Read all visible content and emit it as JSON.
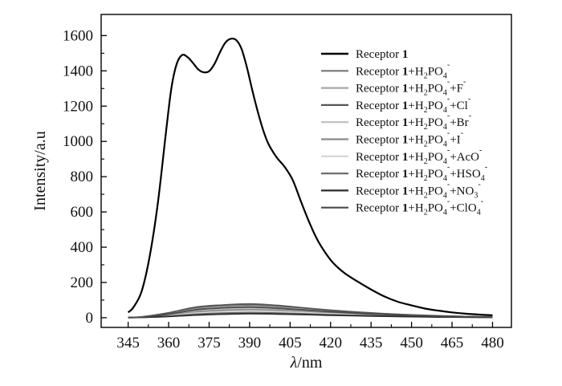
{
  "chart_data": {
    "type": "line",
    "xlabel_symbol": "λ",
    "xlabel_unit": "/nm",
    "ylabel": "Intensity/a.u",
    "xlim": [
      335,
      487
    ],
    "ylim": [
      -55,
      1720
    ],
    "x_ticks": [
      "345",
      "360",
      "375",
      "390",
      "405",
      "420",
      "435",
      "450",
      "465",
      "480"
    ],
    "y_ticks": [
      "0",
      "200",
      "400",
      "600",
      "800",
      "1000",
      "1200",
      "1400",
      "1600"
    ],
    "grid": false,
    "legend_position": "top-right",
    "series": [
      {
        "name": "Receptor 1",
        "legend": [
          {
            "t": "Receptor "
          },
          {
            "t": "1",
            "bold": true
          }
        ],
        "color": "#000000",
        "width": 2.2,
        "x": [
          345,
          347,
          350,
          353,
          356,
          359,
          361,
          363,
          365,
          367,
          369,
          371,
          373,
          375,
          377,
          379,
          381,
          383,
          385,
          387,
          389,
          391,
          393,
          395,
          397,
          400,
          403,
          406,
          409,
          412,
          415,
          418,
          421,
          425,
          430,
          435,
          440,
          445,
          450,
          455,
          460,
          465,
          470,
          475,
          480
        ],
        "y": [
          30,
          60,
          150,
          350,
          650,
          1050,
          1300,
          1440,
          1490,
          1478,
          1445,
          1408,
          1392,
          1398,
          1440,
          1505,
          1560,
          1582,
          1575,
          1525,
          1420,
          1290,
          1170,
          1065,
          985,
          910,
          855,
          780,
          660,
          545,
          445,
          370,
          310,
          255,
          205,
          160,
          120,
          90,
          70,
          52,
          40,
          30,
          23,
          18,
          14
        ]
      },
      {
        "name": "Receptor 1+H2PO4-",
        "legend": [
          {
            "t": "Receptor "
          },
          {
            "t": "1",
            "bold": true
          },
          {
            "t": "+H"
          },
          {
            "t": "2",
            "sub": true
          },
          {
            "t": "PO"
          },
          {
            "t": "4",
            "sub": true
          },
          {
            "t": "-",
            "sup": true
          }
        ],
        "color": "#777777",
        "width": 1.8,
        "x": [
          345,
          350,
          360,
          370,
          380,
          390,
          400,
          410,
          420,
          430,
          440,
          450,
          460,
          470,
          480
        ],
        "y": [
          2,
          4,
          25,
          55,
          68,
          72,
          64,
          52,
          40,
          30,
          22,
          15,
          10,
          7,
          5
        ]
      },
      {
        "name": "Receptor 1+H2PO4-+F-",
        "legend": [
          {
            "t": "Receptor "
          },
          {
            "t": "1",
            "bold": true
          },
          {
            "t": "+H"
          },
          {
            "t": "2",
            "sub": true
          },
          {
            "t": "PO"
          },
          {
            "t": "4",
            "sub": true
          },
          {
            "t": "-",
            "sup": true
          },
          {
            "t": "+F"
          },
          {
            "t": "-",
            "sup": true
          }
        ],
        "color": "#a6a6a6",
        "width": 1.8,
        "x": [
          345,
          350,
          360,
          370,
          380,
          390,
          400,
          410,
          420,
          430,
          440,
          450,
          460,
          470,
          480
        ],
        "y": [
          2,
          4,
          22,
          48,
          60,
          64,
          58,
          47,
          36,
          27,
          20,
          14,
          9,
          6,
          4
        ]
      },
      {
        "name": "Receptor 1+H2PO4-+Cl-",
        "legend": [
          {
            "t": "Receptor "
          },
          {
            "t": "1",
            "bold": true
          },
          {
            "t": "+H"
          },
          {
            "t": "2",
            "sub": true
          },
          {
            "t": "PO"
          },
          {
            "t": "4",
            "sub": true
          },
          {
            "t": "-",
            "sup": true
          },
          {
            "t": "+Cl"
          },
          {
            "t": "-",
            "sup": true
          }
        ],
        "color": "#555555",
        "width": 1.8,
        "x": [
          345,
          350,
          360,
          370,
          380,
          390,
          400,
          410,
          420,
          430,
          440,
          450,
          460,
          470,
          480
        ],
        "y": [
          2,
          5,
          28,
          60,
          72,
          78,
          70,
          56,
          43,
          32,
          23,
          16,
          11,
          7,
          5
        ]
      },
      {
        "name": "Receptor 1+H2PO4-+Br-",
        "legend": [
          {
            "t": "Receptor "
          },
          {
            "t": "1",
            "bold": true
          },
          {
            "t": "+H"
          },
          {
            "t": "2",
            "sub": true
          },
          {
            "t": "PO"
          },
          {
            "t": "4",
            "sub": true
          },
          {
            "t": "-",
            "sup": true
          },
          {
            "t": "+Br"
          },
          {
            "t": "-",
            "sup": true
          }
        ],
        "color": "#bdbdbd",
        "width": 1.8,
        "x": [
          345,
          350,
          360,
          370,
          380,
          390,
          400,
          410,
          420,
          430,
          440,
          450,
          460,
          470,
          480
        ],
        "y": [
          2,
          3,
          18,
          40,
          50,
          55,
          50,
          41,
          31,
          23,
          17,
          12,
          8,
          5,
          4
        ]
      },
      {
        "name": "Receptor 1+H2PO4-+I-",
        "legend": [
          {
            "t": "Receptor "
          },
          {
            "t": "1",
            "bold": true
          },
          {
            "t": "+H"
          },
          {
            "t": "2",
            "sub": true
          },
          {
            "t": "PO"
          },
          {
            "t": "4",
            "sub": true
          },
          {
            "t": "-",
            "sup": true
          },
          {
            "t": "+I"
          },
          {
            "t": "-",
            "sup": true
          }
        ],
        "color": "#8a8a8a",
        "width": 1.8,
        "x": [
          345,
          350,
          360,
          370,
          380,
          390,
          400,
          410,
          420,
          430,
          440,
          450,
          460,
          470,
          480
        ],
        "y": [
          2,
          3,
          15,
          33,
          42,
          46,
          42,
          34,
          26,
          20,
          14,
          10,
          7,
          5,
          3
        ]
      },
      {
        "name": "Receptor 1+H2PO4-+AcO-",
        "legend": [
          {
            "t": "Receptor "
          },
          {
            "t": "1",
            "bold": true
          },
          {
            "t": "+H"
          },
          {
            "t": "2",
            "sub": true
          },
          {
            "t": "PO"
          },
          {
            "t": "4",
            "sub": true
          },
          {
            "t": "-",
            "sup": true
          },
          {
            "t": "+AcO"
          },
          {
            "t": "-",
            "sup": true
          }
        ],
        "color": "#d4d4d4",
        "width": 1.8,
        "x": [
          345,
          350,
          360,
          370,
          380,
          390,
          400,
          410,
          420,
          430,
          440,
          450,
          460,
          470,
          480
        ],
        "y": [
          1,
          3,
          12,
          26,
          34,
          38,
          35,
          29,
          22,
          17,
          12,
          9,
          6,
          4,
          3
        ]
      },
      {
        "name": "Receptor 1+H2PO4-+HSO4-",
        "legend": [
          {
            "t": "Receptor "
          },
          {
            "t": "1",
            "bold": true
          },
          {
            "t": "+H"
          },
          {
            "t": "2",
            "sub": true
          },
          {
            "t": "PO"
          },
          {
            "t": "4",
            "sub": true
          },
          {
            "t": "-",
            "sup": true
          },
          {
            "t": "+HSO"
          },
          {
            "t": "4",
            "sub": true
          },
          {
            "t": "-",
            "sup": true
          }
        ],
        "color": "#6e6e6e",
        "width": 1.8,
        "x": [
          345,
          350,
          360,
          370,
          380,
          390,
          400,
          410,
          420,
          430,
          440,
          450,
          460,
          470,
          480
        ],
        "y": [
          1,
          2,
          9,
          20,
          26,
          29,
          27,
          22,
          17,
          13,
          10,
          7,
          5,
          3,
          2
        ]
      },
      {
        "name": "Receptor 1+H2PO4-+NO3-",
        "legend": [
          {
            "t": "Receptor "
          },
          {
            "t": "1",
            "bold": true
          },
          {
            "t": "+H"
          },
          {
            "t": "2",
            "sub": true
          },
          {
            "t": "PO"
          },
          {
            "t": "4",
            "sub": true
          },
          {
            "t": "-",
            "sup": true
          },
          {
            "t": "+NO"
          },
          {
            "t": "3",
            "sub": true
          },
          {
            "t": "-",
            "sup": true
          }
        ],
        "color": "#2b2b2b",
        "width": 1.8,
        "x": [
          345,
          350,
          360,
          370,
          380,
          390,
          400,
          410,
          420,
          430,
          440,
          450,
          460,
          470,
          480
        ],
        "y": [
          1,
          2,
          7,
          15,
          20,
          23,
          21,
          18,
          14,
          11,
          8,
          6,
          4,
          3,
          2
        ]
      },
      {
        "name": "Receptor 1+H2PO4-+ClO4-",
        "legend": [
          {
            "t": "Receptor "
          },
          {
            "t": "1",
            "bold": true
          },
          {
            "t": "+H"
          },
          {
            "t": "2",
            "sub": true
          },
          {
            "t": "PO"
          },
          {
            "t": "4",
            "sub": true
          },
          {
            "t": "-",
            "sup": true
          },
          {
            "t": "+ClO"
          },
          {
            "t": "4",
            "sub": true
          },
          {
            "t": "-",
            "sup": true
          }
        ],
        "color": "#4a4a4a",
        "width": 1.8,
        "x": [
          345,
          350,
          360,
          370,
          380,
          390,
          400,
          410,
          420,
          430,
          440,
          450,
          460,
          470,
          480
        ],
        "y": [
          1,
          3,
          20,
          45,
          56,
          60,
          54,
          44,
          34,
          25,
          18,
          13,
          9,
          6,
          4
        ]
      }
    ]
  }
}
